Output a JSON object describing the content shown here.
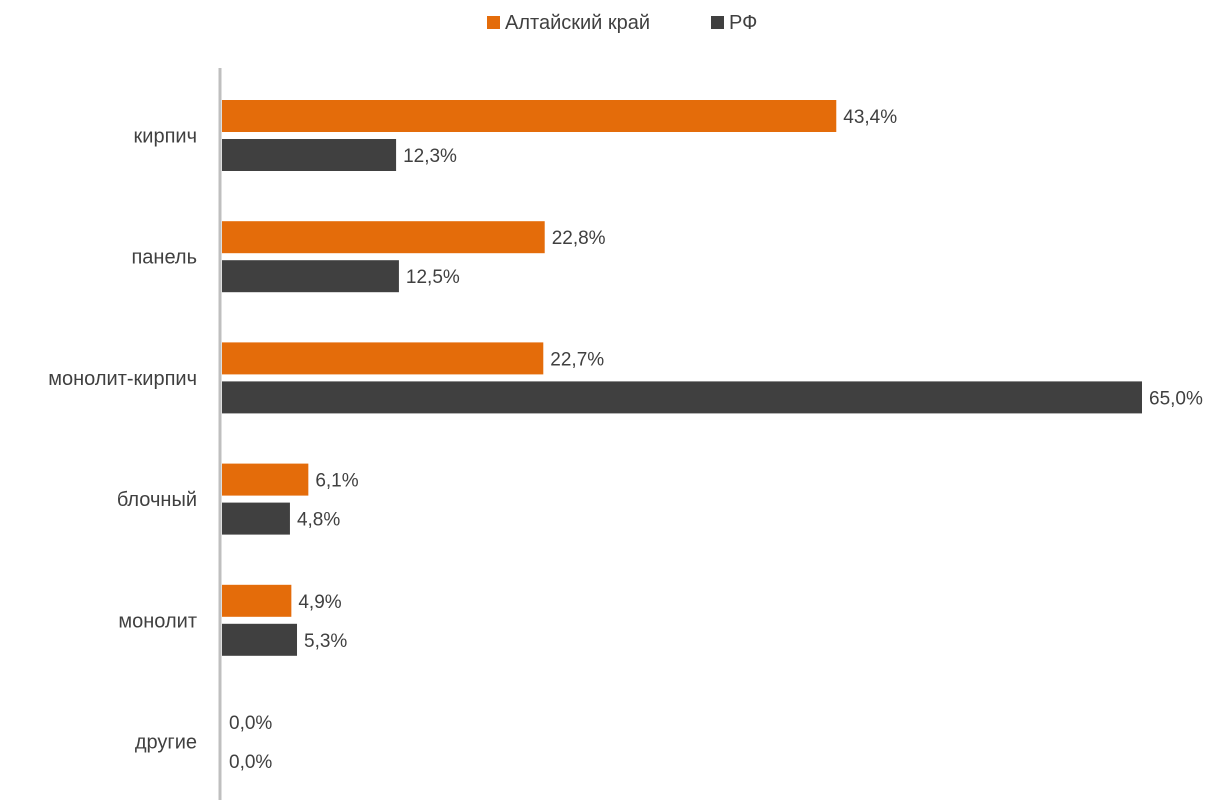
{
  "chart_data": {
    "type": "bar",
    "orientation": "horizontal",
    "categories": [
      "кирпич",
      "панель",
      "монолит-кирпич",
      "блочный",
      "монолит",
      "другие"
    ],
    "series": [
      {
        "name": "Алтайский край",
        "values": [
          43.4,
          22.8,
          22.7,
          6.1,
          4.9,
          0.0
        ],
        "labels": [
          "43,4%",
          "22,8%",
          "22,7%",
          "6,1%",
          "4,9%",
          "0,0%"
        ],
        "color": "#e46c0a"
      },
      {
        "name": "РФ",
        "values": [
          12.3,
          12.5,
          65.0,
          4.8,
          5.3,
          0.0
        ],
        "labels": [
          "12,3%",
          "12,5%",
          "65,0%",
          "4,8%",
          "5,3%",
          "0,0%"
        ],
        "color": "#404040"
      }
    ],
    "unit": "%",
    "xlim": [
      0,
      65
    ],
    "legend_position": "top",
    "grid": false
  }
}
